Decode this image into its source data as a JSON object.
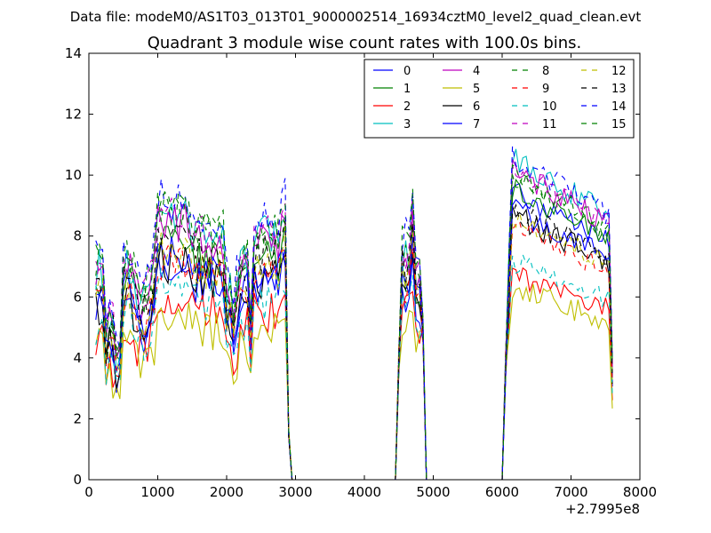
{
  "figure": {
    "suptitle": "Data file: modeM0/AS1T03_013T01_9000002514_16934cztM0_level2_quad_clean.evt",
    "title": "Quadrant 3 module wise count rates with 100.0s bins.",
    "x_offset_label": "+2.7995e8"
  },
  "chart_data": {
    "type": "line",
    "title": "Quadrant 3 module wise count rates with 100.0s bins.",
    "xlabel": "",
    "ylabel": "",
    "xlim": [
      0,
      8000
    ],
    "ylim": [
      0,
      14
    ],
    "x_offset": 279950000,
    "xticks": [
      0,
      1000,
      2000,
      3000,
      4000,
      5000,
      6000,
      7000,
      8000
    ],
    "yticks": [
      0,
      2,
      4,
      6,
      8,
      10,
      12,
      14
    ],
    "grid": false,
    "legend_position": "top-right",
    "legend_columns": 4,
    "segments": [
      {
        "x_start": 100,
        "x_end": 3000,
        "step": 50
      },
      {
        "x_start": 4450,
        "x_end": 4900,
        "step": 50
      },
      {
        "x_start": 6000,
        "x_end": 7600,
        "step": 50
      }
    ],
    "series": [
      {
        "name": "0",
        "color": "#0000ff",
        "dash": "solid",
        "base": 6.8,
        "peak": 9.5
      },
      {
        "name": "1",
        "color": "#008000",
        "dash": "solid",
        "base": 7.6,
        "peak": 9.6
      },
      {
        "name": "2",
        "color": "#ff0000",
        "dash": "solid",
        "base": 5.8,
        "peak": 6.8
      },
      {
        "name": "3",
        "color": "#00bfbf",
        "dash": "solid",
        "base": 8.4,
        "peak": 10.6
      },
      {
        "name": "4",
        "color": "#bf00bf",
        "dash": "solid",
        "base": 8.2,
        "peak": 10.2
      },
      {
        "name": "5",
        "color": "#bfbf00",
        "dash": "solid",
        "base": 5.2,
        "peak": 6.3
      },
      {
        "name": "6",
        "color": "#000000",
        "dash": "solid",
        "base": 7.0,
        "peak": 8.7
      },
      {
        "name": "7",
        "color": "#0000ff",
        "dash": "solid",
        "base": 7.2,
        "peak": 8.9
      },
      {
        "name": "8",
        "color": "#008000",
        "dash": "dashed",
        "base": 8.6,
        "peak": 10.0
      },
      {
        "name": "9",
        "color": "#ff0000",
        "dash": "dashed",
        "base": 7.1,
        "peak": 8.3
      },
      {
        "name": "10",
        "color": "#00bfbf",
        "dash": "dashed",
        "base": 6.2,
        "peak": 7.2
      },
      {
        "name": "11",
        "color": "#bf00bf",
        "dash": "dashed",
        "base": 8.4,
        "peak": 10.2
      },
      {
        "name": "12",
        "color": "#bfbf00",
        "dash": "dashed",
        "base": 7.3,
        "peak": 8.6
      },
      {
        "name": "13",
        "color": "#000000",
        "dash": "dashed",
        "base": 7.8,
        "peak": 8.9
      },
      {
        "name": "14",
        "color": "#0000ff",
        "dash": "dashed",
        "base": 9.0,
        "peak": 10.6
      },
      {
        "name": "15",
        "color": "#008000",
        "dash": "dashed",
        "base": 8.6,
        "peak": 10.0
      }
    ]
  }
}
